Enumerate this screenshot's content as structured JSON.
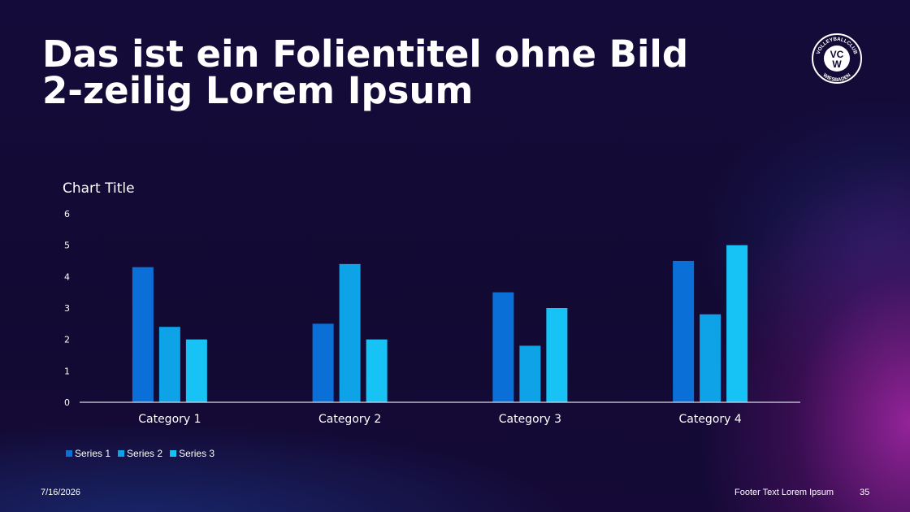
{
  "slide": {
    "title": "Das ist ein Folientitel ohne Bild 2-zeilig Lorem Ipsum",
    "logo": {
      "top_text": "VOLLEYBALLCLUB",
      "letters_top": "VC",
      "letters_bottom": "W",
      "bottom_text": "WIESBADEN"
    }
  },
  "footer": {
    "date": "7/16/2026",
    "text": "Footer Text Lorem Ipsum",
    "page_number": "35"
  },
  "colors": {
    "series1": "#0a6fd6",
    "series2": "#0ea2e6",
    "series3": "#17c2f5",
    "axis_text": "#ffffff",
    "baseline": "#d9d9e6"
  },
  "chart_data": {
    "type": "bar",
    "title": "Chart Title",
    "categories": [
      "Category 1",
      "Category 2",
      "Category 3",
      "Category 4"
    ],
    "series": [
      {
        "name": "Series 1",
        "values": [
          4.3,
          2.5,
          3.5,
          4.5
        ]
      },
      {
        "name": "Series 2",
        "values": [
          2.4,
          4.4,
          1.8,
          2.8
        ]
      },
      {
        "name": "Series 3",
        "values": [
          2,
          2,
          3,
          5
        ]
      }
    ],
    "ylim": [
      0,
      6
    ],
    "yticks": [
      0,
      1,
      2,
      3,
      4,
      5,
      6
    ],
    "grid": false,
    "legend": "bottom-left"
  }
}
